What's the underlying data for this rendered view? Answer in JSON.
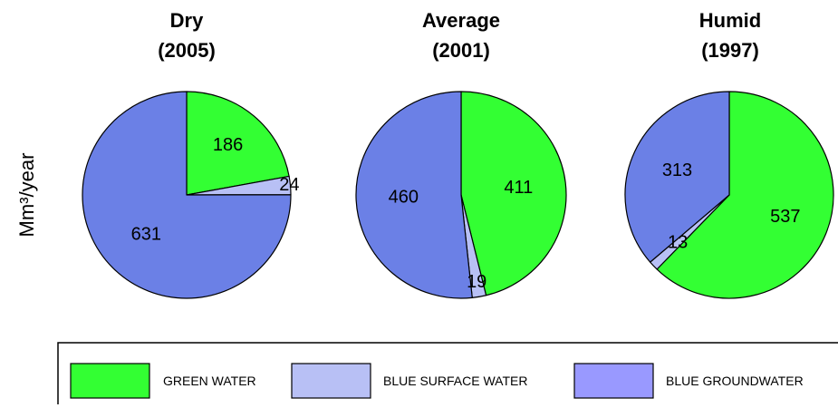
{
  "chart_data": {
    "type": "pie",
    "ylabel": "Mm³/year",
    "colors": {
      "green_water": "#33ff33",
      "blue_surface_water": "#b8c0f5",
      "blue_groundwater_legend": "#9999ff",
      "blue_groundwater_slice": "#6b80e6"
    },
    "legend": [
      "GREEN WATER",
      "BLUE SURFACE WATER",
      "BLUE GROUNDWATER"
    ],
    "pies": [
      {
        "title_line1": "Dry",
        "title_line2": "(2005)",
        "slices": [
          {
            "name": "GREEN WATER",
            "value": 186
          },
          {
            "name": "BLUE SURFACE WATER",
            "value": 24
          },
          {
            "name": "BLUE GROUNDWATER",
            "value": 631
          }
        ]
      },
      {
        "title_line1": "Average",
        "title_line2": "(2001)",
        "slices": [
          {
            "name": "GREEN WATER",
            "value": 411
          },
          {
            "name": "BLUE SURFACE WATER",
            "value": 19
          },
          {
            "name": "BLUE GROUNDWATER",
            "value": 460
          }
        ]
      },
      {
        "title_line1": "Humid",
        "title_line2": "(1997)",
        "slices": [
          {
            "name": "GREEN WATER",
            "value": 537
          },
          {
            "name": "BLUE SURFACE WATER",
            "value": 13
          },
          {
            "name": "BLUE GROUNDWATER",
            "value": 313
          }
        ]
      }
    ]
  }
}
